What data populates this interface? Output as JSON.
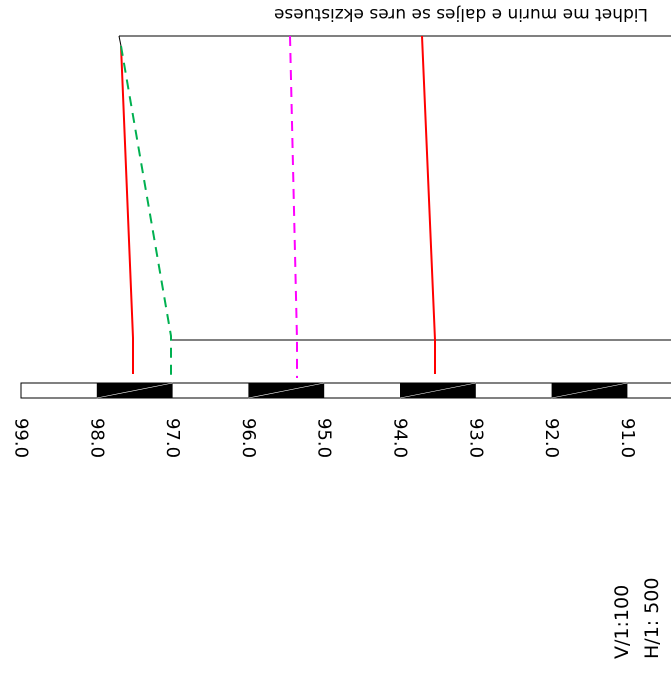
{
  "title": "Lidhet me murin e daljes se ures ekzistuese",
  "scale": {
    "vertical": "V/1:100",
    "horizontal": "H/1: 500"
  },
  "elevation_scale": {
    "ticks": [
      "99.0",
      "98.0",
      "97.0",
      "96.0",
      "95.0",
      "94.0",
      "93.0",
      "92.0",
      "91.0"
    ]
  },
  "profile_lines": [
    {
      "name": "red-solid-left",
      "color": "#ff0000",
      "style": "solid"
    },
    {
      "name": "green-dashed",
      "color": "#00b050",
      "style": "dashed"
    },
    {
      "name": "magenta-dashed",
      "color": "#ff00ff",
      "style": "dashed"
    },
    {
      "name": "red-solid-right",
      "color": "#ff0000",
      "style": "solid"
    }
  ],
  "colors": {
    "line_black": "#000000",
    "bar_fill": "#000000",
    "background": "#ffffff"
  }
}
